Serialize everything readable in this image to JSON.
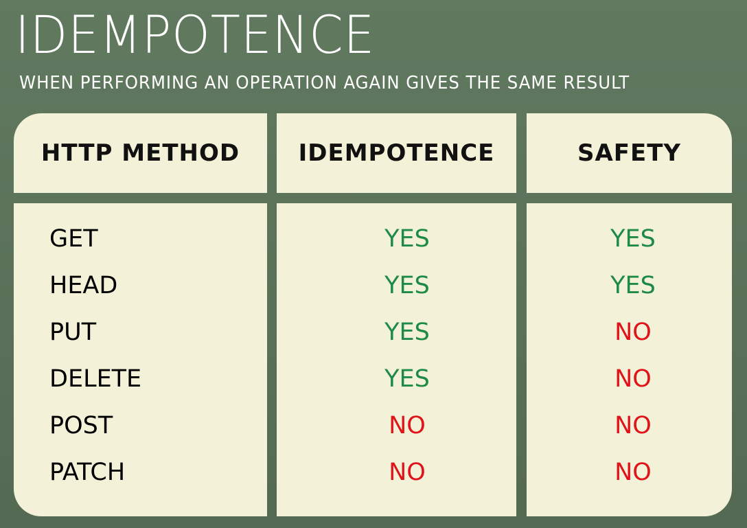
{
  "title": "IDEMPOTENCE",
  "subtitle": "WHEN PERFORMING AN OPERATION AGAIN GIVES THE SAME RESULT",
  "colors": {
    "yes": "#1d8a45",
    "no": "#e0131a",
    "cell": "#f3f2d8",
    "background": "#5a7058"
  },
  "headers": [
    "HTTP METHOD",
    "IDEMPOTENCE",
    "SAFETY"
  ],
  "rows": [
    {
      "method": "GET",
      "idempotence": "YES",
      "safety": "YES"
    },
    {
      "method": "HEAD",
      "idempotence": "YES",
      "safety": "YES"
    },
    {
      "method": "PUT",
      "idempotence": "YES",
      "safety": "NO"
    },
    {
      "method": "DELETE",
      "idempotence": "YES",
      "safety": "NO"
    },
    {
      "method": "POST",
      "idempotence": "NO",
      "safety": "NO"
    },
    {
      "method": "PATCH",
      "idempotence": "NO",
      "safety": "NO"
    }
  ]
}
